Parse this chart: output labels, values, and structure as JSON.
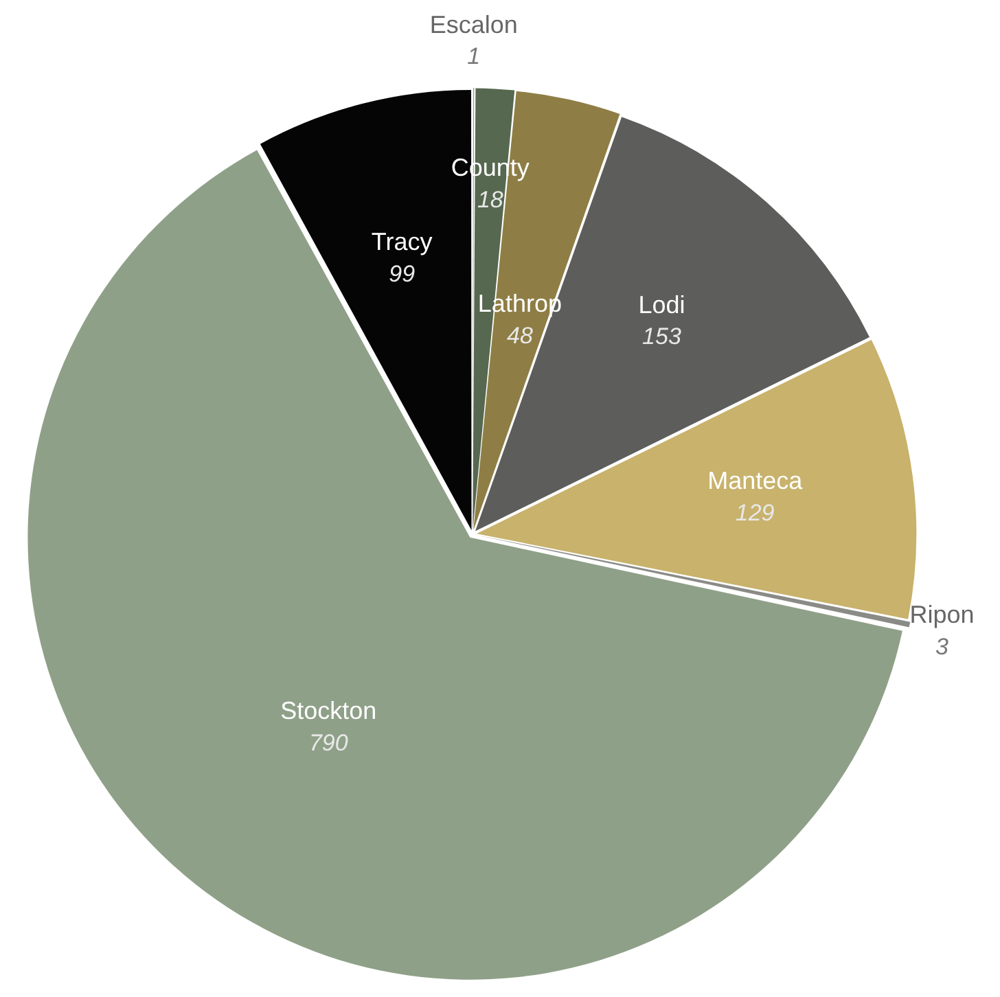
{
  "chart_data": {
    "type": "pie",
    "categories": [
      "Escalon",
      "County",
      "Lathrop",
      "Lodi",
      "Manteca",
      "Ripon",
      "Stockton",
      "Tracy"
    ],
    "values": [
      1,
      18,
      48,
      153,
      129,
      3,
      790,
      99
    ],
    "colors": [
      "#9a9a96",
      "#56684f",
      "#8e7e45",
      "#5d5d5b",
      "#c8b26c",
      "#8a8a86",
      "#8fa088",
      "#050505"
    ],
    "data_labels": true,
    "legend": false
  }
}
